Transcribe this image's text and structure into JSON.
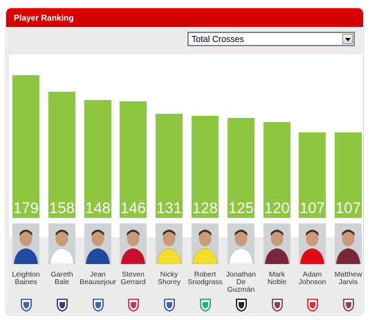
{
  "header": {
    "title": "Player Ranking"
  },
  "selector": {
    "value": "Total Crosses"
  },
  "chart_data": {
    "type": "bar",
    "categories": [
      "Leighton Baines",
      "Gareth Bale",
      "Jean Beausejour",
      "Steven Gerrard",
      "Nicky Shorey",
      "Robert Snodgrass",
      "Jonathan De Guzmán",
      "Mark Noble",
      "Adam Johnson",
      "Matthew Jarvis"
    ],
    "values": [
      179,
      158,
      148,
      146,
      131,
      128,
      125,
      120,
      107,
      107
    ],
    "color": "#8dc63f"
  },
  "players": [
    {
      "first": "Leighton",
      "last": "Baines",
      "value": "179",
      "shirt": "#1f4aa0",
      "crest": "everton-crest-icon",
      "crest_color": "#1f4aa0"
    },
    {
      "first": "Gareth",
      "last": "Bale",
      "value": "158",
      "shirt": "#ffffff",
      "crest": "tottenham-crest-icon",
      "crest_color": "#132257"
    },
    {
      "first": "Jean",
      "last": "Beausejour",
      "value": "148",
      "shirt": "#1f4aa0",
      "crest": "wigan-crest-icon",
      "crest_color": "#1f4aa0"
    },
    {
      "first": "Steven",
      "last": "Gerrard",
      "value": "146",
      "shirt": "#c8102e",
      "crest": "liverpool-crest-icon",
      "crest_color": "#c8102e"
    },
    {
      "first": "Nicky",
      "last": "Shorey",
      "value": "131",
      "shirt": "#f2de2b",
      "crest": "reading-crest-icon",
      "crest_color": "#1f4aa0"
    },
    {
      "first": "Robert",
      "last": "Snodgrass",
      "value": "128",
      "shirt": "#f2de2b",
      "crest": "norwich-crest-icon",
      "crest_color": "#00a650"
    },
    {
      "first": "Jonathan",
      "last": "De Guzmán",
      "value": "125",
      "shirt": "#ffffff",
      "crest": "swansea-crest-icon",
      "crest_color": "#000000"
    },
    {
      "first": "Mark",
      "last": "Noble",
      "value": "120",
      "shirt": "#7a263a",
      "crest": "westham-crest-icon",
      "crest_color": "#7a263a"
    },
    {
      "first": "Adam",
      "last": "Johnson",
      "value": "107",
      "shirt": "#e30613",
      "crest": "sunderland-crest-icon",
      "crest_color": "#e30613"
    },
    {
      "first": "Matthew",
      "last": "Jarvis",
      "value": "107",
      "shirt": "#7a263a",
      "crest": "westham-crest-icon",
      "crest_color": "#7a263a"
    }
  ]
}
